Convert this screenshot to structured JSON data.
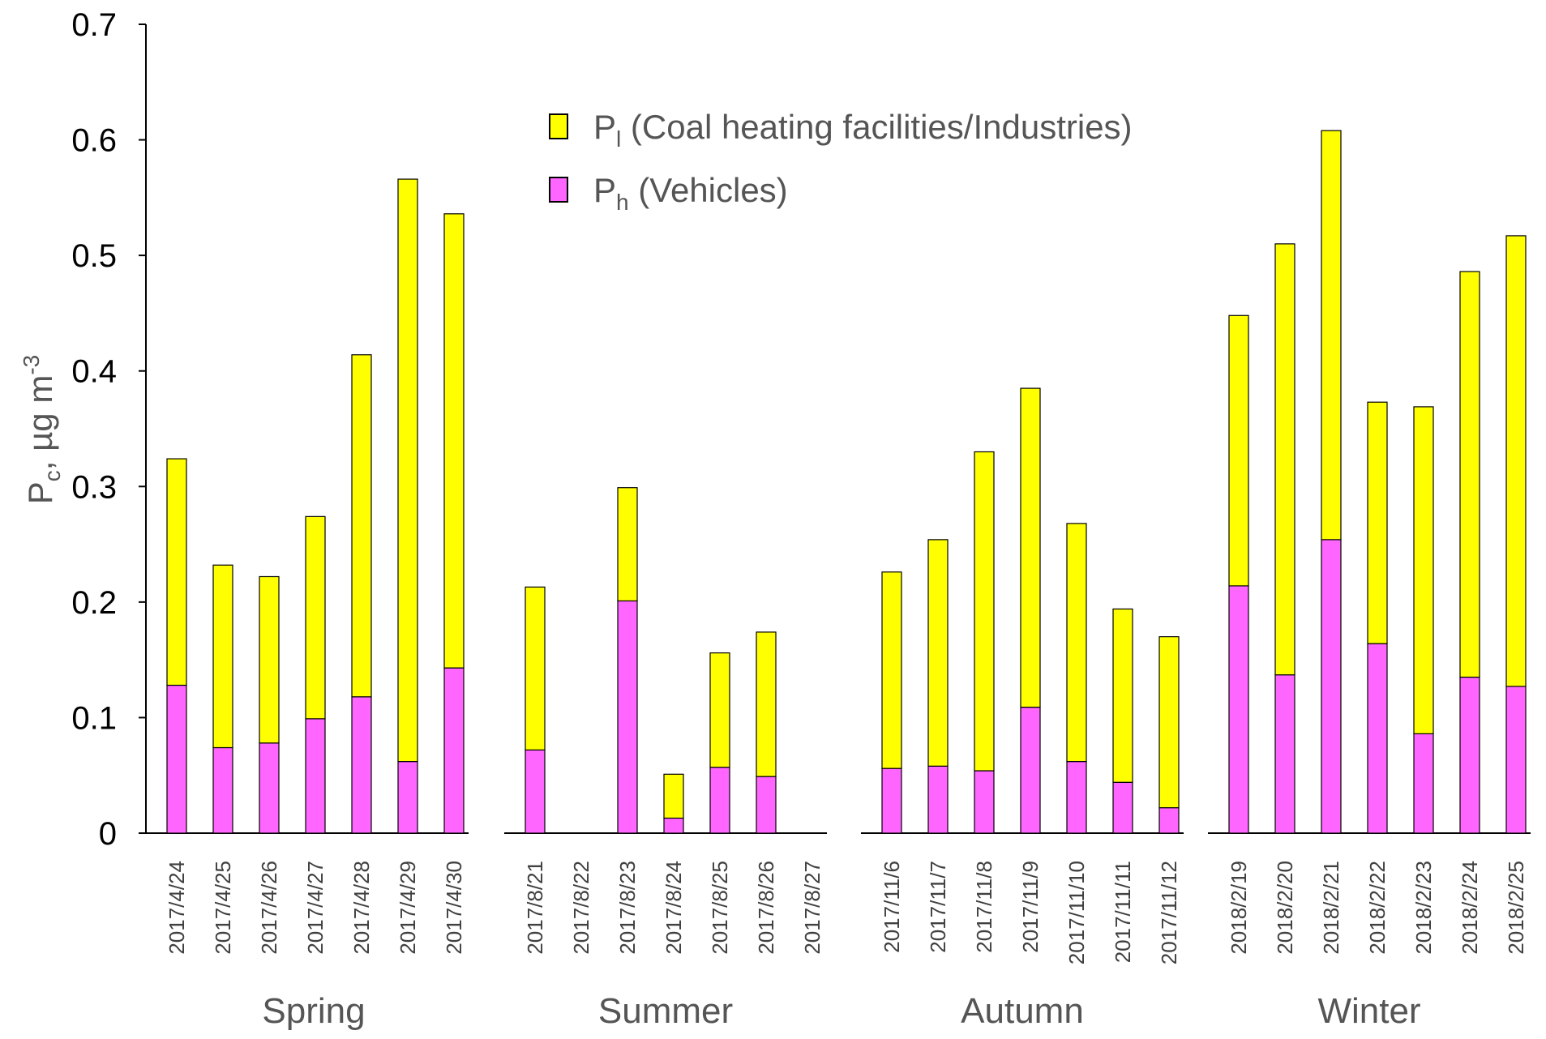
{
  "chart_data": {
    "type": "bar",
    "stacked": true,
    "ylabel": {
      "main": "P",
      "sub": "c",
      "rest": ", µg m",
      "sup": "-3"
    },
    "ylim": [
      0,
      0.7
    ],
    "yticks": [
      "0",
      "0.1",
      "0.2",
      "0.3",
      "0.4",
      "0.5",
      "0.6",
      "0.7"
    ],
    "grid": false,
    "legend_position": "top-center",
    "legend": [
      {
        "key": "pl",
        "main": "P",
        "sub": "l",
        "text": " (Coal heating facilities/Industries)",
        "color": "#ffff00"
      },
      {
        "key": "ph",
        "main": "P",
        "sub": "h",
        "text": " (Vehicles)",
        "color": "#ff66ff"
      }
    ],
    "groups": [
      {
        "name": "Spring",
        "categories": [
          "2017/4/24",
          "2017/4/25",
          "2017/4/26",
          "2017/4/27",
          "2017/4/28",
          "2017/4/29",
          "2017/4/30"
        ],
        "ph": [
          0.128,
          0.074,
          0.078,
          0.099,
          0.118,
          0.062,
          0.143
        ],
        "pl": [
          0.196,
          0.158,
          0.144,
          0.175,
          0.296,
          0.504,
          0.393
        ]
      },
      {
        "name": "Summer",
        "categories": [
          "2017/8/21",
          "2017/8/22",
          "2017/8/23",
          "2017/8/24",
          "2017/8/25",
          "2017/8/26",
          "2017/8/27"
        ],
        "ph": [
          0.072,
          null,
          0.201,
          0.013,
          0.057,
          0.049,
          null
        ],
        "pl": [
          0.141,
          null,
          0.098,
          0.038,
          0.099,
          0.125,
          null
        ]
      },
      {
        "name": "Autumn",
        "categories": [
          "2017/11/6",
          "2017/11/7",
          "2017/11/8",
          "2017/11/9",
          "2017/11/10",
          "2017/11/11",
          "2017/11/12"
        ],
        "ph": [
          0.056,
          0.058,
          0.054,
          0.109,
          0.062,
          0.044,
          0.022
        ],
        "pl": [
          0.17,
          0.196,
          0.276,
          0.276,
          0.206,
          0.15,
          0.148
        ]
      },
      {
        "name": "Winter",
        "categories": [
          "2018/2/19",
          "2018/2/20",
          "2018/2/21",
          "2018/2/22",
          "2018/2/23",
          "2018/2/24",
          "2018/2/25"
        ],
        "ph": [
          0.214,
          0.137,
          0.254,
          0.164,
          0.086,
          0.135,
          0.127
        ],
        "pl": [
          0.234,
          0.373,
          0.354,
          0.209,
          0.283,
          0.351,
          0.39
        ]
      }
    ]
  }
}
